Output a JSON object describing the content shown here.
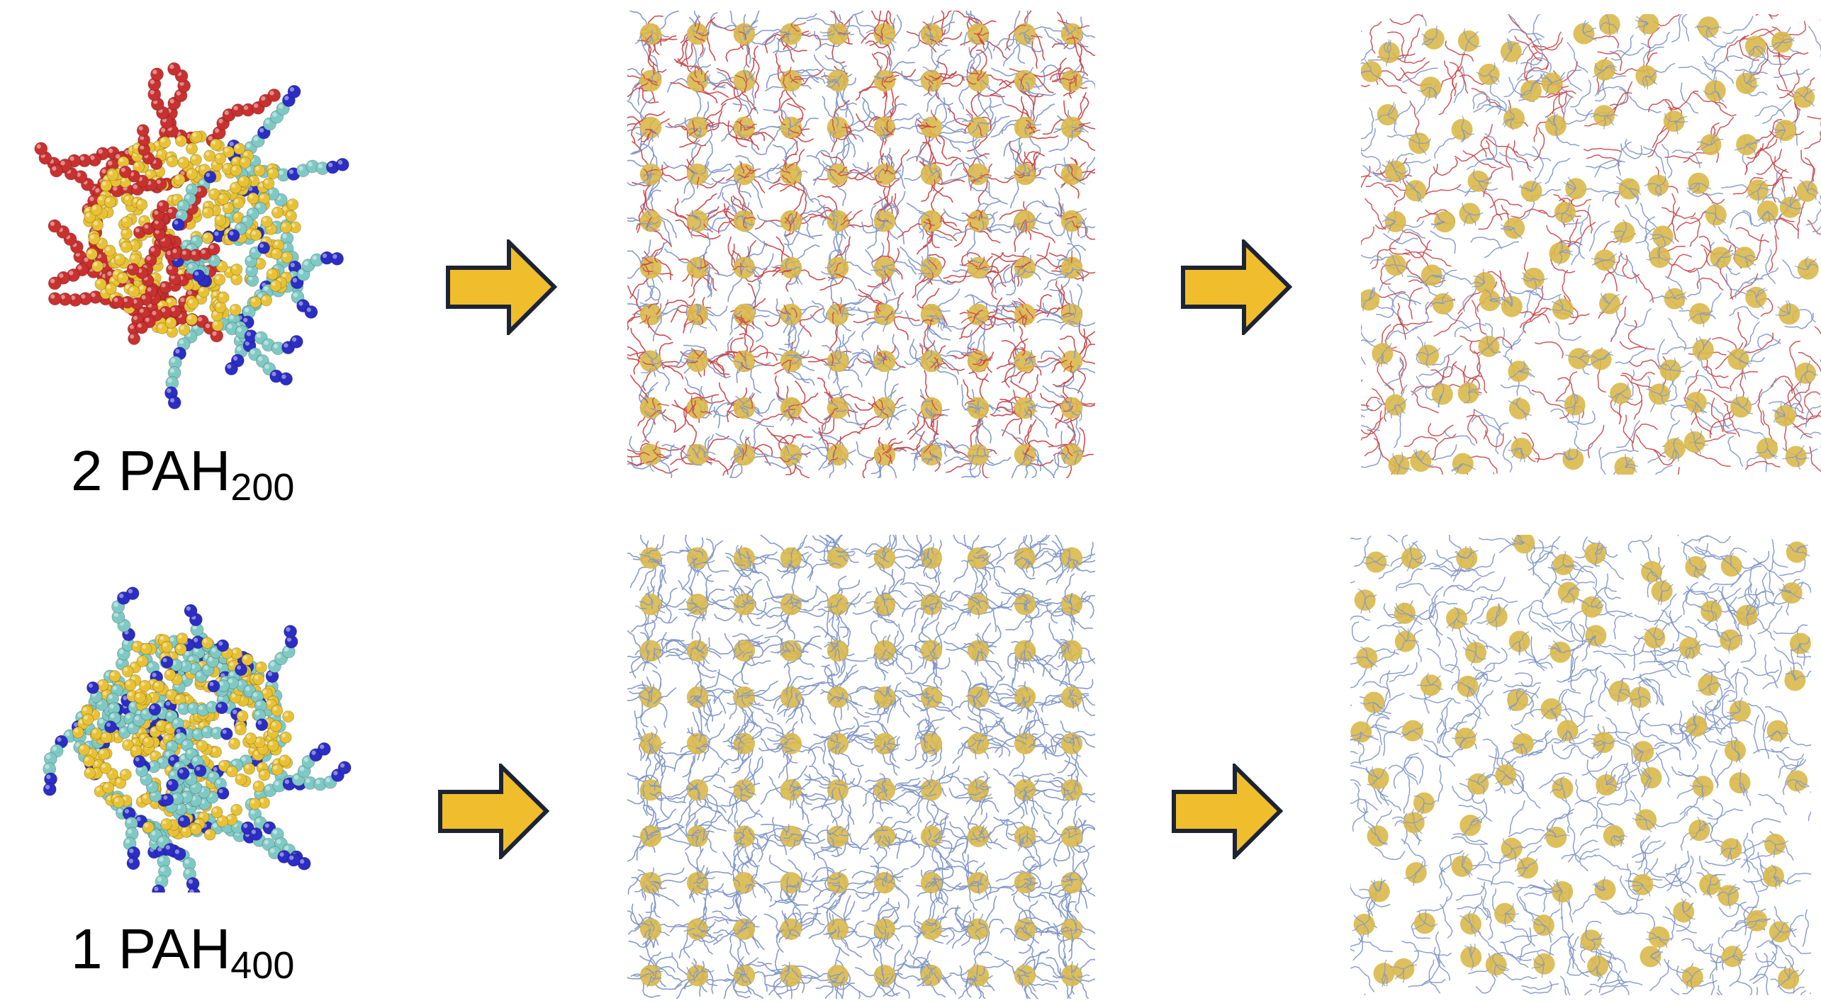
{
  "rows": [
    {
      "id": "two-pah200",
      "label_prefix": "2 PAH",
      "label_subscript": "200",
      "blend": true,
      "colors": {
        "core": "#e8c234",
        "chain_a": "#c8312f",
        "chain_b_light": "#7fc9c4",
        "chain_b_dark": "#2b2dc4"
      }
    },
    {
      "id": "one-pah400",
      "label_prefix": "1 PAH",
      "label_subscript": "400",
      "blend": false,
      "colors": {
        "core": "#e8c234",
        "chain_b_light": "#7fc9c4",
        "chain_b_dark": "#2b2dc4"
      }
    }
  ],
  "grid": {
    "rows": 10,
    "cols": 10
  },
  "colors": {
    "arrow_fill": "#f0bd2c",
    "arrow_stroke": "#1c2433",
    "chain_red": "#c8464a",
    "chain_blue": "#7f96c8",
    "core": "#d9b84a"
  },
  "icons": {
    "arrow": "right-arrow-icon"
  }
}
